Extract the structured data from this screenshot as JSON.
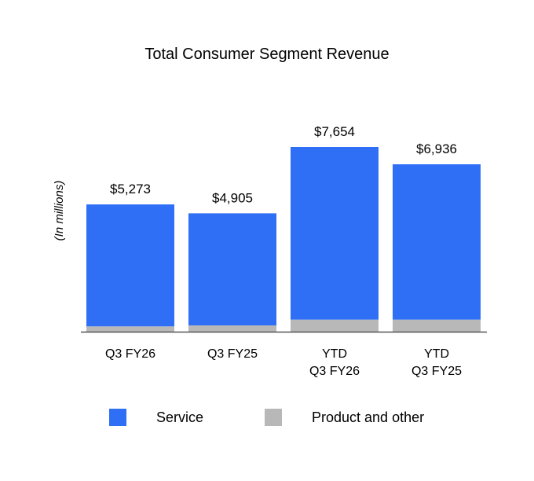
{
  "chart_data": {
    "type": "bar",
    "stacked": true,
    "title": "Total Consumer Segment Revenue",
    "ylabel": "(In millions)",
    "xlabel": "",
    "categories": [
      [
        "Q3 FY26"
      ],
      [
        "Q3 FY25"
      ],
      [
        "YTD",
        "Q3 FY26"
      ],
      [
        "YTD",
        "Q3 FY25"
      ]
    ],
    "totals": [
      "$5,273",
      "$4,905",
      "$7,654",
      "$6,936"
    ],
    "series": [
      {
        "name": "Product and other",
        "color": "#b8b8b8",
        "values": [
          220,
          260,
          500,
          500
        ]
      },
      {
        "name": "Service",
        "color": "#2e6ff5",
        "values": [
          5053,
          4645,
          7154,
          6436
        ]
      }
    ],
    "ylim": [
      0,
      8000
    ],
    "grid": false,
    "legend_position": "bottom"
  }
}
